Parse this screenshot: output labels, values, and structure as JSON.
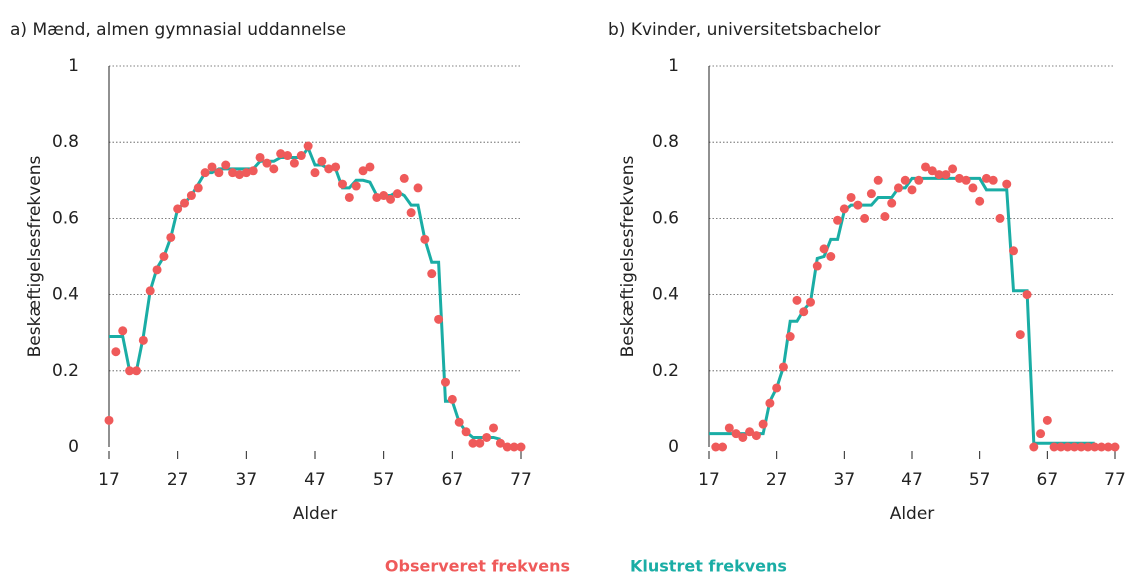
{
  "chart_data": [
    {
      "type": "line",
      "title": "a) Mænd, almen gymnasial uddannelse",
      "x_label": "Alder",
      "y_label": "Beskæftigelsesfrekvens",
      "x": [
        17,
        18,
        19,
        20,
        21,
        22,
        23,
        24,
        25,
        26,
        27,
        28,
        29,
        30,
        31,
        32,
        33,
        34,
        35,
        36,
        37,
        38,
        39,
        40,
        41,
        42,
        43,
        44,
        45,
        46,
        47,
        48,
        49,
        50,
        51,
        52,
        53,
        54,
        55,
        56,
        57,
        58,
        59,
        60,
        61,
        62,
        63,
        64,
        65,
        66,
        67,
        68,
        69,
        70,
        71,
        72,
        73,
        74,
        75,
        76,
        77
      ],
      "series": [
        {
          "name": "Observeret frekvens",
          "color": "#ef5a5a",
          "marker": "dot",
          "values": [
            0.07,
            0.25,
            0.305,
            0.2,
            0.2,
            0.28,
            0.41,
            0.465,
            0.5,
            0.55,
            0.625,
            0.64,
            0.66,
            0.68,
            0.72,
            0.735,
            0.72,
            0.74,
            0.72,
            0.715,
            0.72,
            0.725,
            0.76,
            0.745,
            0.73,
            0.77,
            0.765,
            0.745,
            0.765,
            0.79,
            0.72,
            0.75,
            0.73,
            0.735,
            0.69,
            0.655,
            0.685,
            0.725,
            0.735,
            0.655,
            0.66,
            0.65,
            0.665,
            0.705,
            0.615,
            0.68,
            0.545,
            0.455,
            0.335,
            0.17,
            0.125,
            0.065,
            0.04,
            0.01,
            0.01,
            0.025,
            0.05,
            0.01,
            0,
            0,
            0
          ]
        },
        {
          "name": "Klustret frekvens",
          "color": "#1aada5",
          "marker": "line",
          "values": [
            0.29,
            0.29,
            0.29,
            0.2,
            0.2,
            0.29,
            0.41,
            0.47,
            0.5,
            0.55,
            0.625,
            0.64,
            0.66,
            0.69,
            0.72,
            0.72,
            0.73,
            0.73,
            0.73,
            0.73,
            0.73,
            0.73,
            0.75,
            0.75,
            0.75,
            0.76,
            0.76,
            0.76,
            0.76,
            0.785,
            0.74,
            0.74,
            0.73,
            0.73,
            0.68,
            0.68,
            0.7,
            0.7,
            0.695,
            0.66,
            0.66,
            0.66,
            0.67,
            0.66,
            0.635,
            0.635,
            0.545,
            0.485,
            0.485,
            0.12,
            0.12,
            0.065,
            0.04,
            0.025,
            0.025,
            0.025,
            0.025,
            0.02,
            null,
            null,
            null
          ]
        }
      ],
      "xlim": [
        17,
        77
      ],
      "xticks": [
        17,
        27,
        37,
        47,
        57,
        67,
        77
      ],
      "ylim": [
        0,
        1
      ],
      "yticks": [
        0,
        0.2,
        0.4,
        0.6,
        0.8,
        1
      ],
      "grid": true
    },
    {
      "type": "line",
      "title": "b) Kvinder, universitetsbachelor",
      "x_label": "Alder",
      "y_label": "Beskæftigelsesfrekvens",
      "x": [
        17,
        18,
        19,
        20,
        21,
        22,
        23,
        24,
        25,
        26,
        27,
        28,
        29,
        30,
        31,
        32,
        33,
        34,
        35,
        36,
        37,
        38,
        39,
        40,
        41,
        42,
        43,
        44,
        45,
        46,
        47,
        48,
        49,
        50,
        51,
        52,
        53,
        54,
        55,
        56,
        57,
        58,
        59,
        60,
        61,
        62,
        63,
        64,
        65,
        66,
        67,
        68,
        69,
        70,
        71,
        72,
        73,
        74,
        75,
        76,
        77
      ],
      "series": [
        {
          "color": "#ef5a5a",
          "marker": "dot",
          "values": [
            null,
            0,
            0,
            0.05,
            0.035,
            0.025,
            0.04,
            0.03,
            0.06,
            0.115,
            0.155,
            0.21,
            0.29,
            0.385,
            0.355,
            0.38,
            0.475,
            0.52,
            0.5,
            0.595,
            0.625,
            0.655,
            0.635,
            0.6,
            0.665,
            0.7,
            0.605,
            0.64,
            0.68,
            0.7,
            0.675,
            0.7,
            0.735,
            0.725,
            0.715,
            0.715,
            0.73,
            0.705,
            0.7,
            0.68,
            0.645,
            0.705,
            0.7,
            0.6,
            0.69,
            0.515,
            0.295,
            0.4,
            0,
            0.035,
            0.07,
            0,
            0,
            0,
            0,
            0,
            0,
            0,
            0,
            0,
            0
          ]
        },
        {
          "color": "#1aada5",
          "marker": "line",
          "values": [
            0.035,
            0.035,
            0.035,
            0.035,
            0.035,
            0.035,
            0.035,
            0.035,
            0.035,
            0.12,
            0.155,
            0.21,
            0.33,
            0.33,
            0.36,
            0.38,
            0.495,
            0.5,
            0.545,
            0.545,
            0.62,
            0.635,
            0.635,
            0.635,
            0.635,
            0.655,
            0.655,
            0.655,
            0.68,
            0.68,
            0.705,
            0.705,
            0.705,
            0.705,
            0.705,
            0.705,
            0.705,
            0.705,
            0.705,
            0.705,
            0.705,
            0.675,
            0.675,
            0.675,
            0.675,
            0.41,
            0.41,
            0.41,
            0.01,
            0.01,
            0.01,
            0.01,
            0.01,
            0.01,
            0.01,
            0.01,
            0.01,
            0.01,
            null,
            null,
            null
          ]
        }
      ],
      "xlim": [
        17,
        77
      ],
      "xticks": [
        17,
        27,
        37,
        47,
        57,
        67,
        77
      ],
      "ylim": [
        0,
        1
      ],
      "yticks": [
        0,
        0.2,
        0.4,
        0.6,
        0.8,
        1
      ],
      "grid": true
    }
  ]
}
